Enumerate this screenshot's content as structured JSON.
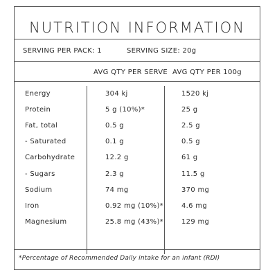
{
  "title": "NUTRITION INFORMATION",
  "serving": {
    "per_pack": "SERVING PER PACK: 1",
    "size": "SERVING SIZE: 20g"
  },
  "columns": {
    "per_serve": "AVG QTY PER SERVE",
    "per_100g": "AVG QTY PER 100g"
  },
  "rows": [
    {
      "label": "Energy",
      "per_serve": "304 kj",
      "per_100g": "1520 kj"
    },
    {
      "label": "Protein",
      "per_serve": "5 g (10%)*",
      "per_100g": "25 g"
    },
    {
      "label": "Fat, total",
      "per_serve": "0.5 g",
      "per_100g": "2.5 g"
    },
    {
      "label": "- Saturated",
      "per_serve": "0.1 g",
      "per_100g": "0.5 g"
    },
    {
      "label": "Carbohydrate",
      "per_serve": "12.2 g",
      "per_100g": "61 g"
    },
    {
      "label": "- Sugars",
      "per_serve": "2.3 g",
      "per_100g": "11.5 g"
    },
    {
      "label": "Sodium",
      "per_serve": "74 mg",
      "per_100g": "370 mg"
    },
    {
      "label": "Iron",
      "per_serve": "0.92 mg (10%)*",
      "per_100g": "4.6 mg"
    },
    {
      "label": "Magnesium",
      "per_serve": "25.8 mg (43%)*",
      "per_100g": "129 mg"
    }
  ],
  "footnote": "*Percentage of Recommended Daily intake for an infant (RDI)"
}
